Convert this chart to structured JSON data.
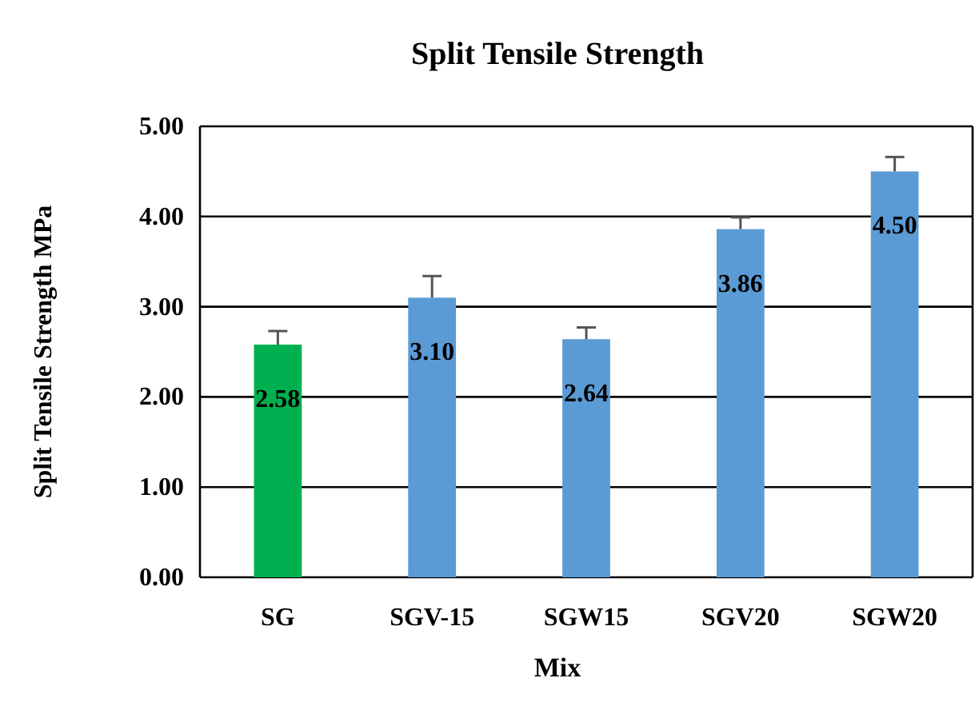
{
  "chart_data": {
    "type": "bar",
    "title": "Split Tensile Strength",
    "xlabel": "Mix",
    "ylabel": "Split Tensile Strength MPa",
    "categories": [
      "SG",
      "SGV-15",
      "SGW15",
      "SGV20",
      "SGW20"
    ],
    "values": [
      2.58,
      3.1,
      2.64,
      3.86,
      4.5
    ],
    "colors": [
      "#00b050",
      "#5b9bd5",
      "#5b9bd5",
      "#5b9bd5",
      "#5b9bd5"
    ],
    "errors": [
      [
        2.58,
        2.73
      ],
      [
        3.1,
        3.34
      ],
      [
        2.64,
        2.77
      ],
      [
        3.86,
        3.99
      ],
      [
        4.5,
        4.66
      ]
    ],
    "ylim": [
      0,
      5
    ],
    "yticks": [
      {
        "value": 0,
        "label": "0.00"
      },
      {
        "value": 1,
        "label": "1.00"
      },
      {
        "value": 2,
        "label": "2.00"
      },
      {
        "value": 3,
        "label": "3.00"
      },
      {
        "value": 4,
        "label": "4.00"
      },
      {
        "value": 5,
        "label": "5.00"
      }
    ],
    "value_labels": [
      "2.58",
      "3.10",
      "2.64",
      "3.86",
      "4.50"
    ],
    "grid": "y"
  }
}
